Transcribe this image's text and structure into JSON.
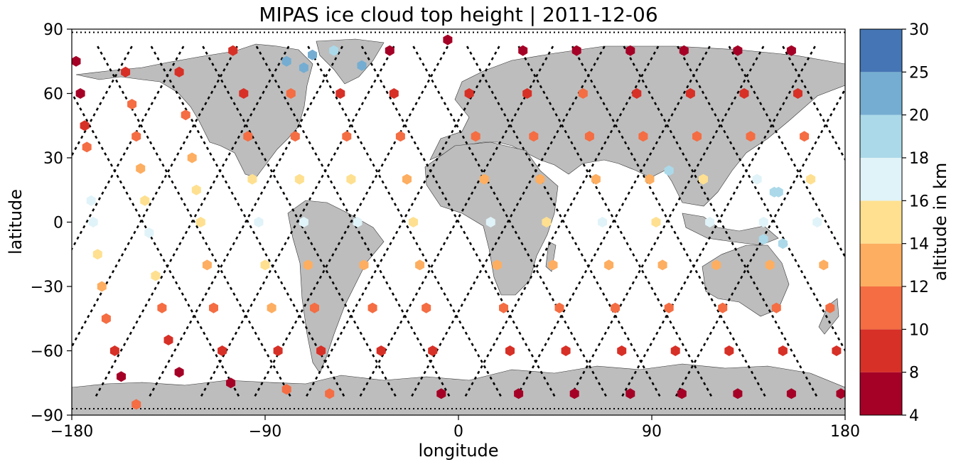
{
  "chart_data": {
    "type": "scatter",
    "title": "MIPAS ice cloud top height | 2011-12-06",
    "xlabel": "longitude",
    "ylabel": "latitude",
    "xlim": [
      -180,
      180
    ],
    "ylim": [
      -90,
      90
    ],
    "xticks": [
      -180,
      -90,
      0,
      90,
      180
    ],
    "xtick_labels": [
      "−180",
      "−90",
      "0",
      "90",
      "180"
    ],
    "yticks": [
      -90,
      -60,
      -30,
      0,
      30,
      60,
      90
    ],
    "ytick_labels": [
      "−90",
      "−60",
      "−30",
      "0",
      "30",
      "60",
      "90"
    ],
    "grid": false,
    "background": "map of continents (gray land, white ocean) with dashed satellite ground tracks",
    "land_color": "#bdbdbd",
    "track_color": "#000000",
    "marker": "hexagon",
    "colorbar": {
      "label": "altitude in km",
      "boundaries": [
        4,
        8,
        10,
        12,
        14,
        16,
        18,
        20,
        25,
        30
      ],
      "tick_labels": [
        "4",
        "8",
        "10",
        "12",
        "14",
        "16",
        "18",
        "20",
        "25",
        "30"
      ],
      "colors": [
        "#a50026",
        "#d73027",
        "#f46d43",
        "#fdae61",
        "#fee090",
        "#e0f3f8",
        "#abd9e9",
        "#74add1",
        "#4575b4"
      ],
      "placement": "right"
    },
    "orbit_crossings_deg": [
      -172,
      -148,
      -123,
      -99,
      -74,
      -50,
      -25,
      -1,
      24,
      48,
      73,
      97,
      122,
      146,
      171
    ],
    "points": [
      {
        "lon": -178,
        "lat": 75,
        "z": 6
      },
      {
        "lon": -176,
        "lat": 60,
        "z": 6
      },
      {
        "lon": -174,
        "lat": 45,
        "z": 9
      },
      {
        "lon": -173,
        "lat": 35,
        "z": 11
      },
      {
        "lon": -171,
        "lat": 10,
        "z": 17
      },
      {
        "lon": -170,
        "lat": 0,
        "z": 17
      },
      {
        "lon": -168,
        "lat": -15,
        "z": 15
      },
      {
        "lon": -166,
        "lat": -30,
        "z": 13
      },
      {
        "lon": -164,
        "lat": -45,
        "z": 11
      },
      {
        "lon": -160,
        "lat": -60,
        "z": 9
      },
      {
        "lon": -157,
        "lat": -72,
        "z": 6
      },
      {
        "lon": -150,
        "lat": -85,
        "z": 11
      },
      {
        "lon": -155,
        "lat": 70,
        "z": 9
      },
      {
        "lon": -152,
        "lat": 55,
        "z": 11
      },
      {
        "lon": -150,
        "lat": 40,
        "z": 11
      },
      {
        "lon": -148,
        "lat": 25,
        "z": 13
      },
      {
        "lon": -146,
        "lat": 10,
        "z": 15
      },
      {
        "lon": -144,
        "lat": -5,
        "z": 17
      },
      {
        "lon": -141,
        "lat": -25,
        "z": 15
      },
      {
        "lon": -138,
        "lat": -40,
        "z": 11
      },
      {
        "lon": -135,
        "lat": -55,
        "z": 9
      },
      {
        "lon": -130,
        "lat": -70,
        "z": 6
      },
      {
        "lon": -130,
        "lat": 70,
        "z": 9
      },
      {
        "lon": -127,
        "lat": 50,
        "z": 11
      },
      {
        "lon": -124,
        "lat": 30,
        "z": 13
      },
      {
        "lon": -122,
        "lat": 15,
        "z": 15
      },
      {
        "lon": -120,
        "lat": 0,
        "z": 15
      },
      {
        "lon": -117,
        "lat": -20,
        "z": 13
      },
      {
        "lon": -114,
        "lat": -40,
        "z": 11
      },
      {
        "lon": -110,
        "lat": -60,
        "z": 9
      },
      {
        "lon": -106,
        "lat": -75,
        "z": 6
      },
      {
        "lon": -105,
        "lat": 80,
        "z": 9
      },
      {
        "lon": -100,
        "lat": 60,
        "z": 9
      },
      {
        "lon": -98,
        "lat": 40,
        "z": 11
      },
      {
        "lon": -96,
        "lat": 20,
        "z": 15
      },
      {
        "lon": -93,
        "lat": 0,
        "z": 17
      },
      {
        "lon": -90,
        "lat": -20,
        "z": 15
      },
      {
        "lon": -87,
        "lat": -40,
        "z": 13
      },
      {
        "lon": -84,
        "lat": -60,
        "z": 9
      },
      {
        "lon": -80,
        "lat": -78,
        "z": 11
      },
      {
        "lon": -80,
        "lat": 75,
        "z": 22
      },
      {
        "lon": -78,
        "lat": 60,
        "z": 11
      },
      {
        "lon": -76,
        "lat": 40,
        "z": 11
      },
      {
        "lon": -74,
        "lat": 20,
        "z": 15
      },
      {
        "lon": -72,
        "lat": 0,
        "z": 17
      },
      {
        "lon": -70,
        "lat": -20,
        "z": 13
      },
      {
        "lon": -67,
        "lat": -40,
        "z": 11
      },
      {
        "lon": -64,
        "lat": -60,
        "z": 9
      },
      {
        "lon": -60,
        "lat": -80,
        "z": 11
      },
      {
        "lon": -58,
        "lat": 80,
        "z": 19
      },
      {
        "lon": -55,
        "lat": 60,
        "z": 9
      },
      {
        "lon": -52,
        "lat": 40,
        "z": 11
      },
      {
        "lon": -50,
        "lat": 20,
        "z": 15
      },
      {
        "lon": -47,
        "lat": 0,
        "z": 17
      },
      {
        "lon": -44,
        "lat": -20,
        "z": 13
      },
      {
        "lon": -40,
        "lat": -40,
        "z": 11
      },
      {
        "lon": -36,
        "lat": -60,
        "z": 9
      },
      {
        "lon": -32,
        "lat": 80,
        "z": 6
      },
      {
        "lon": -30,
        "lat": 60,
        "z": 9
      },
      {
        "lon": -27,
        "lat": 40,
        "z": 11
      },
      {
        "lon": -24,
        "lat": 20,
        "z": 13
      },
      {
        "lon": -21,
        "lat": 0,
        "z": 15
      },
      {
        "lon": -18,
        "lat": -20,
        "z": 13
      },
      {
        "lon": -15,
        "lat": -40,
        "z": 11
      },
      {
        "lon": -12,
        "lat": -60,
        "z": 9
      },
      {
        "lon": -8,
        "lat": -80,
        "z": 6
      },
      {
        "lon": -5,
        "lat": 85,
        "z": 6
      },
      {
        "lon": 5,
        "lat": 60,
        "z": 9
      },
      {
        "lon": 8,
        "lat": 40,
        "z": 11
      },
      {
        "lon": 12,
        "lat": 20,
        "z": 13
      },
      {
        "lon": 15,
        "lat": 0,
        "z": 17
      },
      {
        "lon": 18,
        "lat": -20,
        "z": 13
      },
      {
        "lon": 21,
        "lat": -40,
        "z": 11
      },
      {
        "lon": 24,
        "lat": -60,
        "z": 9
      },
      {
        "lon": 28,
        "lat": -80,
        "z": 6
      },
      {
        "lon": 30,
        "lat": 80,
        "z": 6
      },
      {
        "lon": 32,
        "lat": 60,
        "z": 9
      },
      {
        "lon": 35,
        "lat": 40,
        "z": 11
      },
      {
        "lon": 38,
        "lat": 20,
        "z": 13
      },
      {
        "lon": 41,
        "lat": 0,
        "z": 15
      },
      {
        "lon": 44,
        "lat": -20,
        "z": 13
      },
      {
        "lon": 47,
        "lat": -40,
        "z": 11
      },
      {
        "lon": 50,
        "lat": -60,
        "z": 9
      },
      {
        "lon": 54,
        "lat": -80,
        "z": 6
      },
      {
        "lon": 55,
        "lat": 80,
        "z": 6
      },
      {
        "lon": 58,
        "lat": 60,
        "z": 11
      },
      {
        "lon": 61,
        "lat": 40,
        "z": 11
      },
      {
        "lon": 64,
        "lat": 20,
        "z": 13
      },
      {
        "lon": 67,
        "lat": 0,
        "z": 17
      },
      {
        "lon": 70,
        "lat": -20,
        "z": 13
      },
      {
        "lon": 73,
        "lat": -40,
        "z": 11
      },
      {
        "lon": 76,
        "lat": -60,
        "z": 9
      },
      {
        "lon": 80,
        "lat": -80,
        "z": 6
      },
      {
        "lon": 80,
        "lat": 80,
        "z": 6
      },
      {
        "lon": 83,
        "lat": 60,
        "z": 9
      },
      {
        "lon": 86,
        "lat": 40,
        "z": 11
      },
      {
        "lon": 89,
        "lat": 20,
        "z": 13
      },
      {
        "lon": 92,
        "lat": 0,
        "z": 15
      },
      {
        "lon": 95,
        "lat": -20,
        "z": 13
      },
      {
        "lon": 98,
        "lat": -40,
        "z": 11
      },
      {
        "lon": 101,
        "lat": -60,
        "z": 9
      },
      {
        "lon": 104,
        "lat": -80,
        "z": 6
      },
      {
        "lon": 105,
        "lat": 80,
        "z": 6
      },
      {
        "lon": 108,
        "lat": 60,
        "z": 9
      },
      {
        "lon": 111,
        "lat": 40,
        "z": 11
      },
      {
        "lon": 114,
        "lat": 20,
        "z": 15
      },
      {
        "lon": 117,
        "lat": 0,
        "z": 17
      },
      {
        "lon": 120,
        "lat": -20,
        "z": 13
      },
      {
        "lon": 123,
        "lat": -40,
        "z": 11
      },
      {
        "lon": 126,
        "lat": -60,
        "z": 9
      },
      {
        "lon": 130,
        "lat": -80,
        "z": 6
      },
      {
        "lon": 130,
        "lat": 80,
        "z": 6
      },
      {
        "lon": 133,
        "lat": 60,
        "z": 9
      },
      {
        "lon": 136,
        "lat": 40,
        "z": 11
      },
      {
        "lon": 139,
        "lat": 20,
        "z": 17
      },
      {
        "lon": 142,
        "lat": 0,
        "z": 17
      },
      {
        "lon": 145,
        "lat": -20,
        "z": 13
      },
      {
        "lon": 148,
        "lat": -40,
        "z": 11
      },
      {
        "lon": 151,
        "lat": -60,
        "z": 9
      },
      {
        "lon": 155,
        "lat": -80,
        "z": 6
      },
      {
        "lon": 155,
        "lat": 80,
        "z": 6
      },
      {
        "lon": 158,
        "lat": 60,
        "z": 9
      },
      {
        "lon": 161,
        "lat": 40,
        "z": 11
      },
      {
        "lon": 164,
        "lat": 20,
        "z": 15
      },
      {
        "lon": 167,
        "lat": 0,
        "z": 17
      },
      {
        "lon": 170,
        "lat": -20,
        "z": 13
      },
      {
        "lon": 173,
        "lat": -40,
        "z": 11
      },
      {
        "lon": 176,
        "lat": -60,
        "z": 9
      },
      {
        "lon": 178,
        "lat": -80,
        "z": 6
      },
      {
        "lon": -68,
        "lat": 78,
        "z": 22
      },
      {
        "lon": -72,
        "lat": 72,
        "z": 22
      },
      {
        "lon": -45,
        "lat": 73,
        "z": 22
      },
      {
        "lon": 98,
        "lat": 24,
        "z": 19
      },
      {
        "lon": 147,
        "lat": 14,
        "z": 19
      },
      {
        "lon": 149,
        "lat": 14,
        "z": 19
      },
      {
        "lon": 142,
        "lat": -8,
        "z": 19
      },
      {
        "lon": 151,
        "lat": -10,
        "z": 19
      }
    ]
  }
}
